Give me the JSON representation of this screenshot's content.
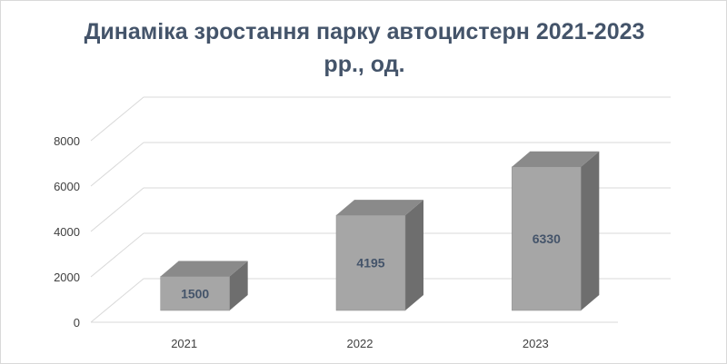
{
  "chart_data": {
    "type": "bar",
    "title_line1": "Динаміка зростання парку автоцистерн  2021-2023",
    "title_line2": "рр., од.",
    "categories": [
      "2021",
      "2022",
      "2023"
    ],
    "values": [
      1500,
      4195,
      6330
    ],
    "ylim": [
      0,
      8000
    ],
    "yticks": [
      0,
      2000,
      4000,
      6000,
      8000
    ],
    "grid": true,
    "legend": "none",
    "style": "3d-column",
    "colors": {
      "front": "#a6a6a6",
      "side": "#6e6e6e",
      "top": "#8a8a8a",
      "grid": "#d9d9d9",
      "title": "#44546a",
      "data_label": "#44546a"
    }
  }
}
